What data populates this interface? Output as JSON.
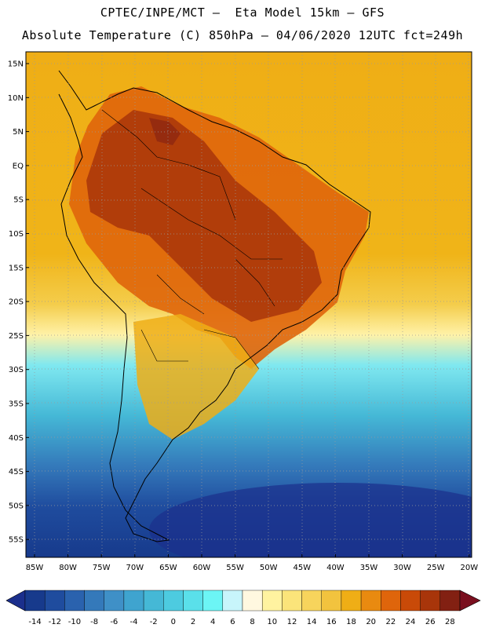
{
  "header": {
    "line1": "CPTEC/INPE/MCT –  Eta Model 15km – GFS",
    "line2": "Absolute Temperature (C) 850hPa – 04/06/2020 12UTC fct=249h"
  },
  "axes": {
    "latitude_labels": [
      "15N",
      "10N",
      "5N",
      "EQ",
      "5S",
      "10S",
      "15S",
      "20S",
      "25S",
      "30S",
      "35S",
      "40S",
      "45S",
      "50S",
      "55S"
    ],
    "longitude_labels": [
      "85W",
      "80W",
      "75W",
      "70W",
      "65W",
      "60W",
      "55W",
      "50W",
      "45W",
      "40W",
      "35W",
      "30W",
      "25W",
      "20W"
    ]
  },
  "colorbar": {
    "ticks": [
      "-14",
      "-12",
      "-10",
      "-8",
      "-6",
      "-4",
      "-2",
      "0",
      "2",
      "4",
      "6",
      "8",
      "10",
      "12",
      "14",
      "16",
      "18",
      "20",
      "22",
      "24",
      "26",
      "28"
    ],
    "colors": [
      "#173a8c",
      "#1f4c9e",
      "#2a62ae",
      "#3479ba",
      "#3f90c7",
      "#3fa4cf",
      "#45b8d6",
      "#4dcbe0",
      "#5ae0ea",
      "#6cf5f5",
      "#c8f5fb",
      "#fff8e0",
      "#fff3a0",
      "#fbe47a",
      "#f7d45c",
      "#f2c33e",
      "#efae16",
      "#e98a10",
      "#df650b",
      "#c94a08",
      "#a8350a",
      "#822012"
    ],
    "under_color": "#1b2f8c",
    "over_color": "#7a0f1f"
  }
}
